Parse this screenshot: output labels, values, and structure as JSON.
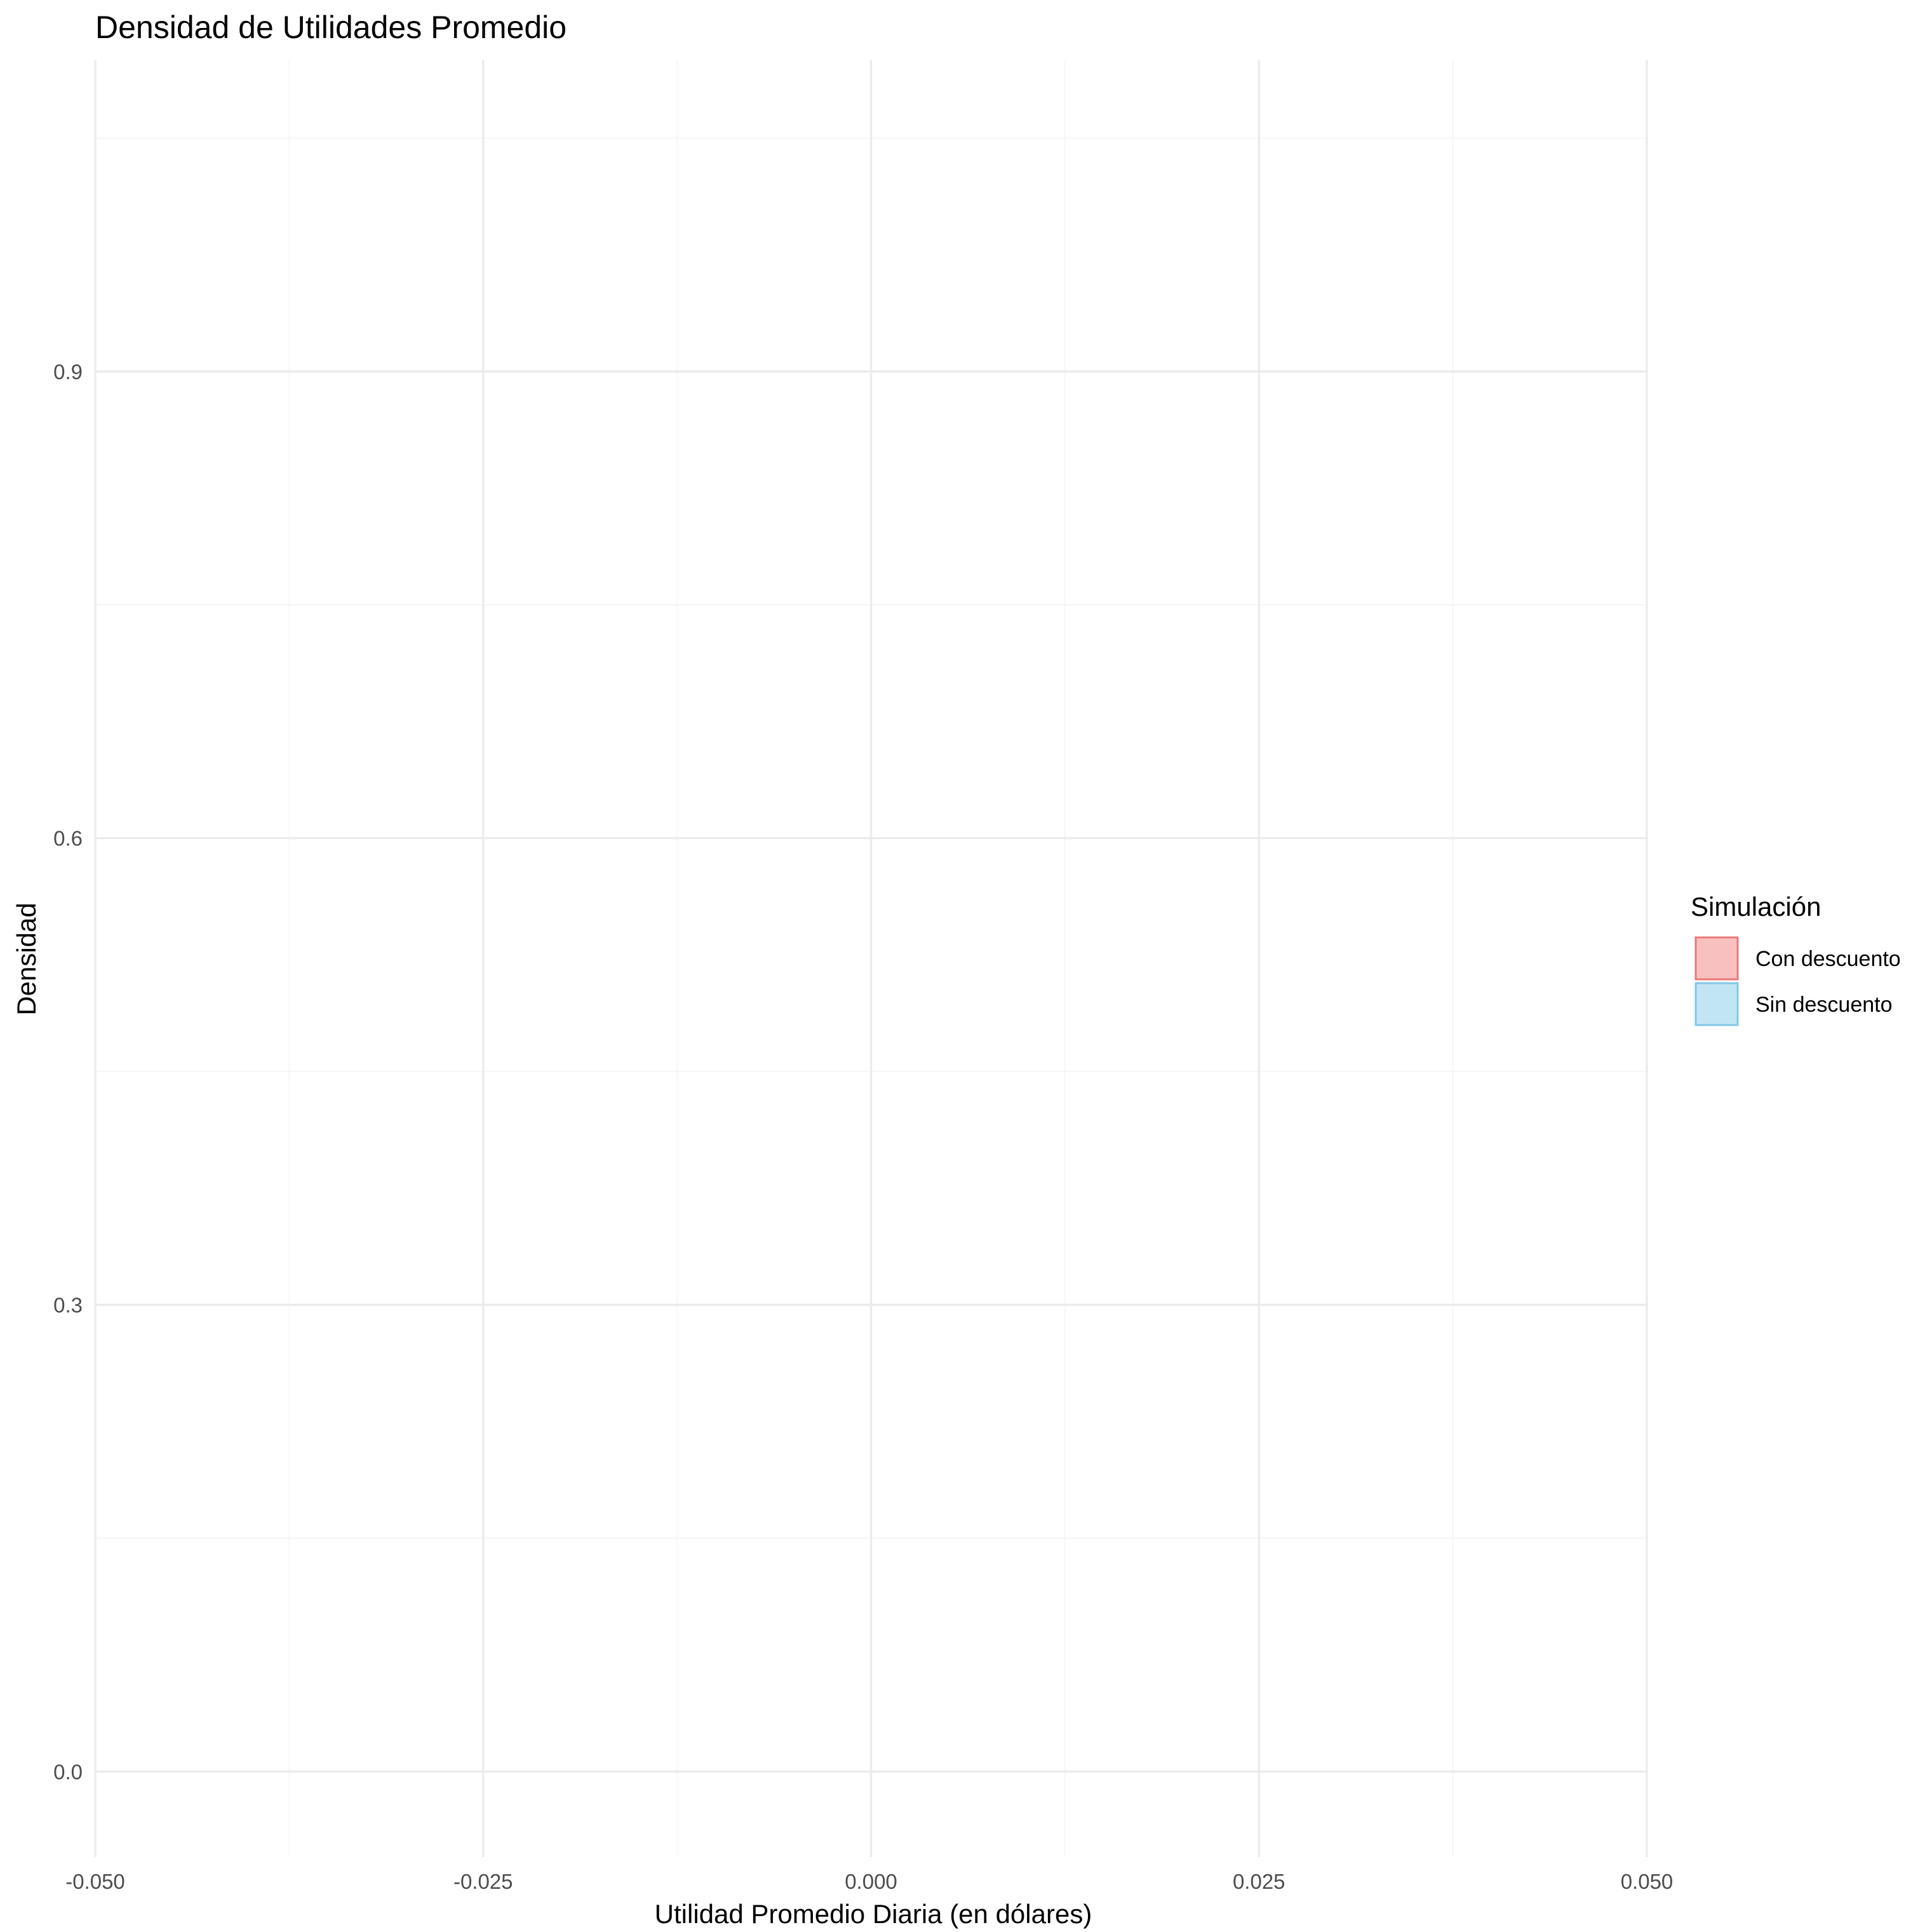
{
  "chart_data": {
    "type": "area",
    "title": "Densidad de Utilidades Promedio",
    "xlabel": "Utilidad Promedio Diaria (en dólares)",
    "ylabel": "Densidad",
    "xlim": [
      -0.05,
      0.05
    ],
    "ylim": [
      -0.055,
      1.1
    ],
    "x_ticks": [
      -0.05,
      -0.025,
      0.0,
      0.025,
      0.05
    ],
    "x_tick_labels": [
      "-0.050",
      "-0.025",
      "0.000",
      "0.025",
      "0.050"
    ],
    "y_ticks": [
      0.0,
      0.3,
      0.6,
      0.9
    ],
    "y_tick_labels": [
      "0.0",
      "0.3",
      "0.6",
      "0.9"
    ],
    "x_minor_ticks": [
      -0.0375,
      -0.0125,
      0.0125,
      0.0375
    ],
    "y_minor_ticks": [
      0.15,
      0.45,
      0.75,
      1.05
    ],
    "grid": true,
    "legend": {
      "title": "Simulación",
      "placement": "right"
    },
    "series": [
      {
        "name": "Con descuento",
        "fill": "#f8c1bf",
        "stroke": "#e9797a",
        "values": []
      },
      {
        "name": "Sin descuento",
        "fill": "#c2e5f4",
        "stroke": "#82c8e6",
        "values": []
      }
    ]
  }
}
